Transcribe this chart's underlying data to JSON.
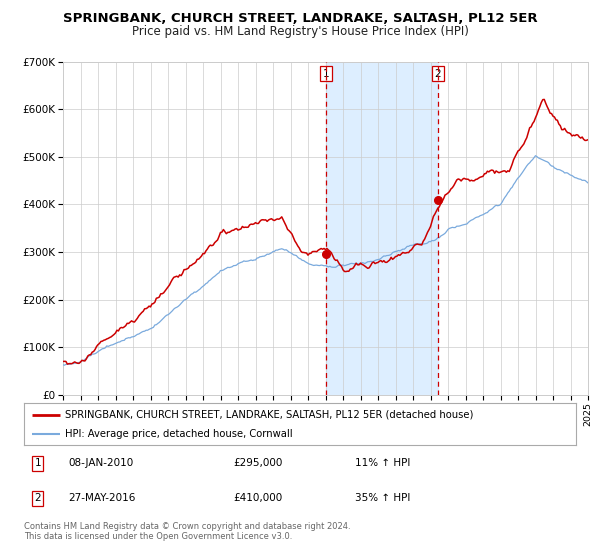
{
  "title": "SPRINGBANK, CHURCH STREET, LANDRAKE, SALTASH, PL12 5ER",
  "subtitle": "Price paid vs. HM Land Registry's House Price Index (HPI)",
  "legend_line1": "SPRINGBANK, CHURCH STREET, LANDRAKE, SALTASH, PL12 5ER (detached house)",
  "legend_line2": "HPI: Average price, detached house, Cornwall",
  "annotation1_date": "08-JAN-2010",
  "annotation1_price": "£295,000",
  "annotation1_hpi": "11% ↑ HPI",
  "annotation2_date": "27-MAY-2016",
  "annotation2_price": "£410,000",
  "annotation2_hpi": "35% ↑ HPI",
  "footer_line1": "Contains HM Land Registry data © Crown copyright and database right 2024.",
  "footer_line2": "This data is licensed under the Open Government Licence v3.0.",
  "vline1_year": 2010.03,
  "vline2_year": 2016.42,
  "marker1_y": 295000,
  "marker2_y": 410000,
  "ylim": [
    0,
    700000
  ],
  "xlim_start": 1995,
  "xlim_end": 2025,
  "red_color": "#cc0000",
  "blue_color": "#7aaadd",
  "shade_color": "#ddeeff",
  "grid_color": "#cccccc",
  "background_color": "#ffffff"
}
